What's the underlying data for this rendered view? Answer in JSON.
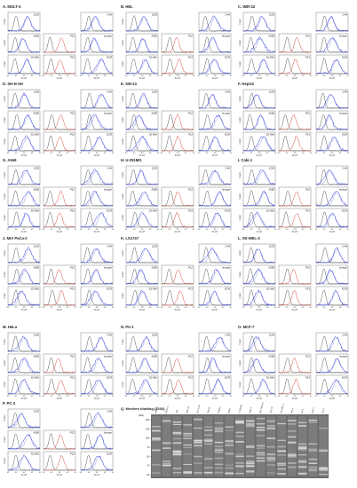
{
  "figure": {
    "panels": [
      {
        "id": "A",
        "label": "A. MOLT-4"
      },
      {
        "id": "B",
        "label": "B. HEL"
      },
      {
        "id": "C",
        "label": "C. IMR-32"
      },
      {
        "id": "D",
        "label": "D. SH-N-SH"
      },
      {
        "id": "E",
        "label": "E. SW-13"
      },
      {
        "id": "F",
        "label": "F. HepG2"
      },
      {
        "id": "G",
        "label": "G. A549"
      },
      {
        "id": "H",
        "label": "H. U-251MG"
      },
      {
        "id": "I",
        "label": "I. Caki-1"
      },
      {
        "id": "J",
        "label": "J. MIA PaCa-2"
      },
      {
        "id": "K",
        "label": "K. LS1747"
      },
      {
        "id": "L",
        "label": "L. SK-MEL-2"
      },
      {
        "id": "M",
        "label": "M. HeLa"
      },
      {
        "id": "N",
        "label": "N. PA-1"
      },
      {
        "id": "O",
        "label": "O. MCF-7"
      },
      {
        "id": "P",
        "label": "P. PC-3"
      }
    ],
    "subplot_labels": [
      "1203",
      "2-46",
      "A285",
      "P12",
      "Isotype",
      "S2-56A",
      "P13",
      "ECR"
    ],
    "axis": {
      "y_title": "Count",
      "x_title": "FL1-H",
      "x_ticks": [
        "10⁰",
        "10¹",
        "10²",
        "10³",
        "10⁴"
      ]
    },
    "western": {
      "title": "Q. Western blotting (1203)",
      "lanes": [
        "Marker",
        "MOLT-4",
        "HEL",
        "IMR-32",
        "SH-N-SH",
        "SW-13",
        "HepG2",
        "A549",
        "U-251MG",
        "Caki-1",
        "MIA PaCa-2",
        "LS1747",
        "SK-MEL-2",
        "HeLa",
        "PA-1",
        "MCF-7",
        "PC-3"
      ],
      "mw_unit": "(kDa)",
      "mw_markers": [
        "250",
        "150",
        "100",
        "75",
        "50",
        "37",
        "25"
      ]
    },
    "colors": {
      "isotype": "#111111",
      "antibody": "#2e3bd8",
      "secondary": "#d23a2a"
    }
  }
}
